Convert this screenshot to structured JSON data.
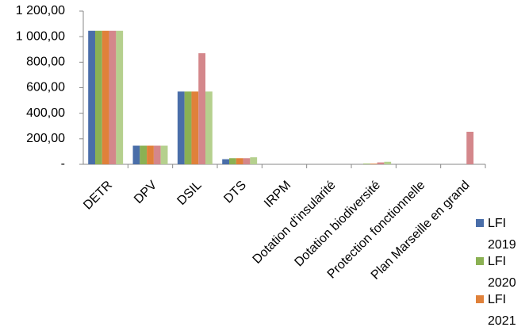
{
  "chart_data": {
    "type": "bar",
    "categories": [
      "DETR",
      "DPV",
      "DSIL",
      "DTS",
      "IRPM",
      "Dotation  d'insularité",
      "Dotation biodiversité",
      "Protection fonctionnelle",
      "Plan Marseille en grand"
    ],
    "series": [
      {
        "name": "LFI 2019",
        "color": "#4a6ea9",
        "values": [
          1046,
          146,
          570,
          40,
          0,
          0,
          0,
          0,
          0
        ]
      },
      {
        "name": "LFI 2020",
        "color": "#8bb153",
        "values": [
          1046,
          146,
          570,
          48,
          0,
          0,
          5,
          0,
          0
        ]
      },
      {
        "name": "LFI 2021",
        "color": "#e0813a",
        "values": [
          1046,
          146,
          570,
          48,
          0,
          0,
          5,
          0,
          0
        ]
      },
      {
        "color": "#d4878b",
        "values": [
          1046,
          146,
          870,
          48,
          0,
          0,
          15,
          0,
          255
        ]
      },
      {
        "color": "#b5d08e",
        "values": [
          1046,
          146,
          570,
          55,
          0,
          0,
          20,
          0,
          0
        ]
      }
    ],
    "ylim": [
      0,
      1200
    ],
    "yticks": [
      {
        "value": 0,
        "label": "-"
      },
      {
        "value": 200,
        "label": "200,00"
      },
      {
        "value": 400,
        "label": "400,00"
      },
      {
        "value": 600,
        "label": "600,00"
      },
      {
        "value": 800,
        "label": "800,00"
      },
      {
        "value": 1000,
        "label": "1 000,00"
      },
      {
        "value": 1200,
        "label": "1 200,00"
      }
    ]
  }
}
